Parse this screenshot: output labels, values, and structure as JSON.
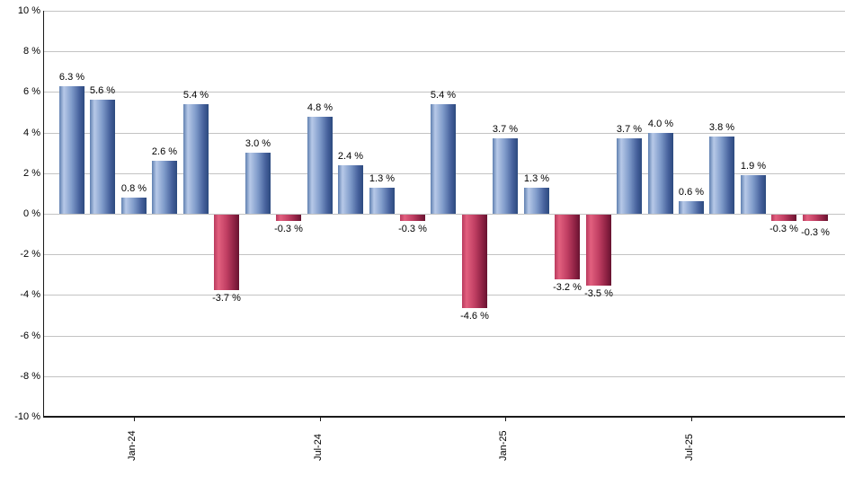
{
  "chart_data": {
    "type": "bar",
    "title": "",
    "xlabel": "",
    "ylabel": "",
    "grid": "horizontal",
    "legend_position": "none",
    "y_axis": {
      "min": -10,
      "max": 10,
      "step": 2,
      "tick_labels": [
        "10 %",
        "8 %",
        "6 %",
        "4 %",
        "2 %",
        "0 %",
        "-2 %",
        "-4 %",
        "-6 %",
        "-8 %",
        "-10 %"
      ]
    },
    "x_ticks": [
      {
        "bar_index": 2,
        "label": "Jan-24"
      },
      {
        "bar_index": 8,
        "label": "Jul-24"
      },
      {
        "bar_index": 14,
        "label": "Jan-25"
      },
      {
        "bar_index": 20,
        "label": "Jul-25"
      }
    ],
    "bars": [
      {
        "value": 6.3,
        "label": "6.3 %"
      },
      {
        "value": 5.6,
        "label": "5.6 %"
      },
      {
        "value": 0.8,
        "label": "0.8 %"
      },
      {
        "value": 2.6,
        "label": "2.6 %"
      },
      {
        "value": 5.4,
        "label": "5.4 %"
      },
      {
        "value": -3.7,
        "label": "-3.7 %"
      },
      {
        "value": 3.0,
        "label": "3.0 %"
      },
      {
        "value": -0.3,
        "label": "-0.3 %"
      },
      {
        "value": 4.8,
        "label": "4.8 %"
      },
      {
        "value": 2.4,
        "label": "2.4 %"
      },
      {
        "value": 1.3,
        "label": "1.3 %"
      },
      {
        "value": -0.3,
        "label": "-0.3 %"
      },
      {
        "value": 5.4,
        "label": "5.4 %"
      },
      {
        "value": -4.6,
        "label": "-4.6 %"
      },
      {
        "value": 3.7,
        "label": "3.7 %"
      },
      {
        "value": 1.3,
        "label": "1.3 %"
      },
      {
        "value": -3.2,
        "label": "-3.2 %"
      },
      {
        "value": -3.5,
        "label": "-3.5 %"
      },
      {
        "value": 3.7,
        "label": "3.7 %"
      },
      {
        "value": 4.0,
        "label": "4.0 %"
      },
      {
        "value": 0.6,
        "label": "0.6 %"
      },
      {
        "value": 3.8,
        "label": "3.8 %"
      },
      {
        "value": 1.9,
        "label": "1.9 %"
      },
      {
        "value": -0.3,
        "label": "-0.3 %"
      },
      {
        "value": -0.3,
        "label": "-0.3 %"
      }
    ],
    "colors": {
      "positive_gradient_stops": [
        "#6080b0",
        "#b7c9e8",
        "#7e9ac9",
        "#46619c",
        "#2c4a7e"
      ],
      "negative_gradient_stops": [
        "#b93a5e",
        "#e2607f",
        "#c13f63",
        "#8f2244",
        "#671330"
      ],
      "gridline": "#c3c3c3",
      "axis": "#1a1a1a",
      "text": "#000000",
      "background": "#ffffff"
    }
  }
}
